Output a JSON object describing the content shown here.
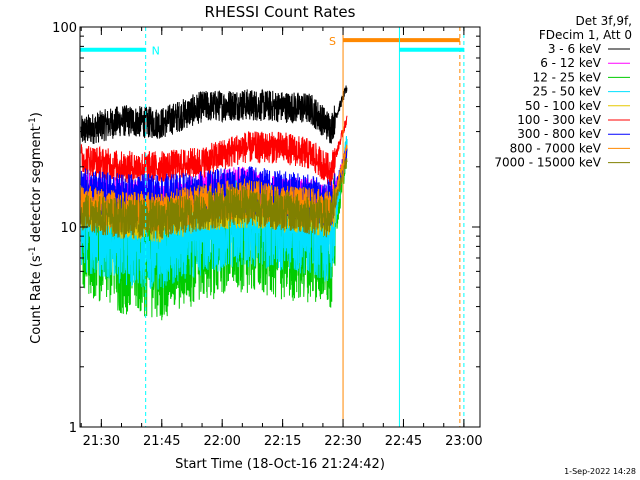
{
  "chart_data": {
    "type": "line",
    "title": "RHESSI Count Rates",
    "xlabel": "Start Time (18-Oct-16 21:24:42)",
    "ylabel_main": "Count Rate (s",
    "ylabel_sup1": "-1",
    "ylabel_mid": " detector segment",
    "ylabel_sup2": "-1",
    "ylabel_end": ")",
    "y_scale": "log",
    "ylim": [
      1,
      100
    ],
    "xlim": [
      "21:24:42",
      "23:04:00"
    ],
    "x_ticks": [
      "21:30",
      "21:45",
      "22:00",
      "22:15",
      "22:30",
      "22:45",
      "23:00"
    ],
    "y_ticks": [
      "1",
      "10",
      "100"
    ],
    "info_line1": "Det 3f,9f,",
    "info_line2": "FDecim 1, Att 0",
    "legend_position": "right",
    "footer_date": "1-Sep-2022 14:28",
    "series": [
      {
        "name": "3 - 6 keV",
        "color": "#000000",
        "x": [
          "21:25",
          "21:35",
          "21:45",
          "21:55",
          "22:05",
          "22:15",
          "22:22",
          "22:27",
          "22:31"
        ],
        "y": [
          30,
          34,
          33,
          40,
          41,
          40,
          39,
          31,
          50
        ]
      },
      {
        "name": "6 - 12 keV",
        "color": "#ff00ff",
        "x": [
          "21:25",
          "21:35",
          "21:45",
          "21:55",
          "22:05",
          "22:15",
          "22:22",
          "22:27",
          "22:31"
        ],
        "y": [
          15,
          14,
          13,
          15,
          16,
          14,
          14,
          13,
          25
        ]
      },
      {
        "name": "12 - 25 keV",
        "color": "#00cc00",
        "x": [
          "21:25",
          "21:35",
          "21:45",
          "21:55",
          "22:05",
          "22:15",
          "22:22",
          "22:27",
          "22:31"
        ],
        "y": [
          9,
          7,
          6.5,
          8,
          9,
          8,
          8,
          7.5,
          25
        ]
      },
      {
        "name": "25 - 50 keV",
        "color": "#00e0ff",
        "x": [
          "21:25",
          "21:35",
          "21:45",
          "21:55",
          "22:05",
          "22:15",
          "22:22",
          "22:27",
          "22:31"
        ],
        "y": [
          10,
          8.5,
          8,
          9.5,
          10.5,
          10,
          9.5,
          8.5,
          26
        ]
      },
      {
        "name": "50 - 100 keV",
        "color": "#e6c800",
        "x": [
          "21:25",
          "21:35",
          "21:45",
          "21:55",
          "22:05",
          "22:15",
          "22:22",
          "22:27",
          "22:31"
        ],
        "y": [
          13,
          11.5,
          11,
          12.5,
          13,
          12.5,
          12,
          11.5,
          24
        ]
      },
      {
        "name": "100 - 300 keV",
        "color": "#ff0000",
        "x": [
          "21:25",
          "21:35",
          "21:45",
          "21:55",
          "22:05",
          "22:15",
          "22:22",
          "22:27",
          "22:31"
        ],
        "y": [
          22,
          20,
          20,
          21,
          25,
          25,
          23,
          19,
          35
        ]
      },
      {
        "name": "300 - 800 keV",
        "color": "#0000ff",
        "x": [
          "21:25",
          "21:35",
          "21:45",
          "21:55",
          "22:05",
          "22:15",
          "22:22",
          "22:27",
          "22:31"
        ],
        "y": [
          15,
          14,
          14,
          14.5,
          15.5,
          14.5,
          14,
          13,
          24
        ]
      },
      {
        "name": "800 - 7000 keV",
        "color": "#ff8800",
        "x": [
          "21:25",
          "21:35",
          "21:45",
          "21:55",
          "22:05",
          "22:15",
          "22:22",
          "22:27",
          "22:31"
        ],
        "y": [
          13,
          12,
          12,
          13,
          14,
          13,
          12.5,
          12,
          25
        ]
      },
      {
        "name": "7000 - 15000 keV",
        "color": "#808000",
        "x": [
          "21:25",
          "21:35",
          "21:45",
          "21:55",
          "22:05",
          "22:15",
          "22:22",
          "22:27",
          "22:31"
        ],
        "y": [
          12,
          11,
          11,
          12,
          13,
          12,
          11.5,
          11,
          22
        ]
      }
    ],
    "annotations": [
      {
        "label": "N",
        "color": "#00ffff",
        "bar_x": [
          "21:24:42",
          "21:41:00"
        ],
        "bar_y": 77,
        "dashed_line_x": "21:41:00"
      },
      {
        "label": "S",
        "color": "#ff8800",
        "bar_x": [
          "22:30:00",
          "22:59:00"
        ],
        "bar_y": 86,
        "solid_line_x": "22:30:00",
        "dashed_line_x": "22:59:00"
      },
      {
        "label": "",
        "color": "#00ffff",
        "bar_x": [
          "22:44:00",
          "23:00:00"
        ],
        "bar_y": 77,
        "solid_line_x": "22:44:00",
        "dashed_line_x": "23:00:00"
      }
    ]
  }
}
